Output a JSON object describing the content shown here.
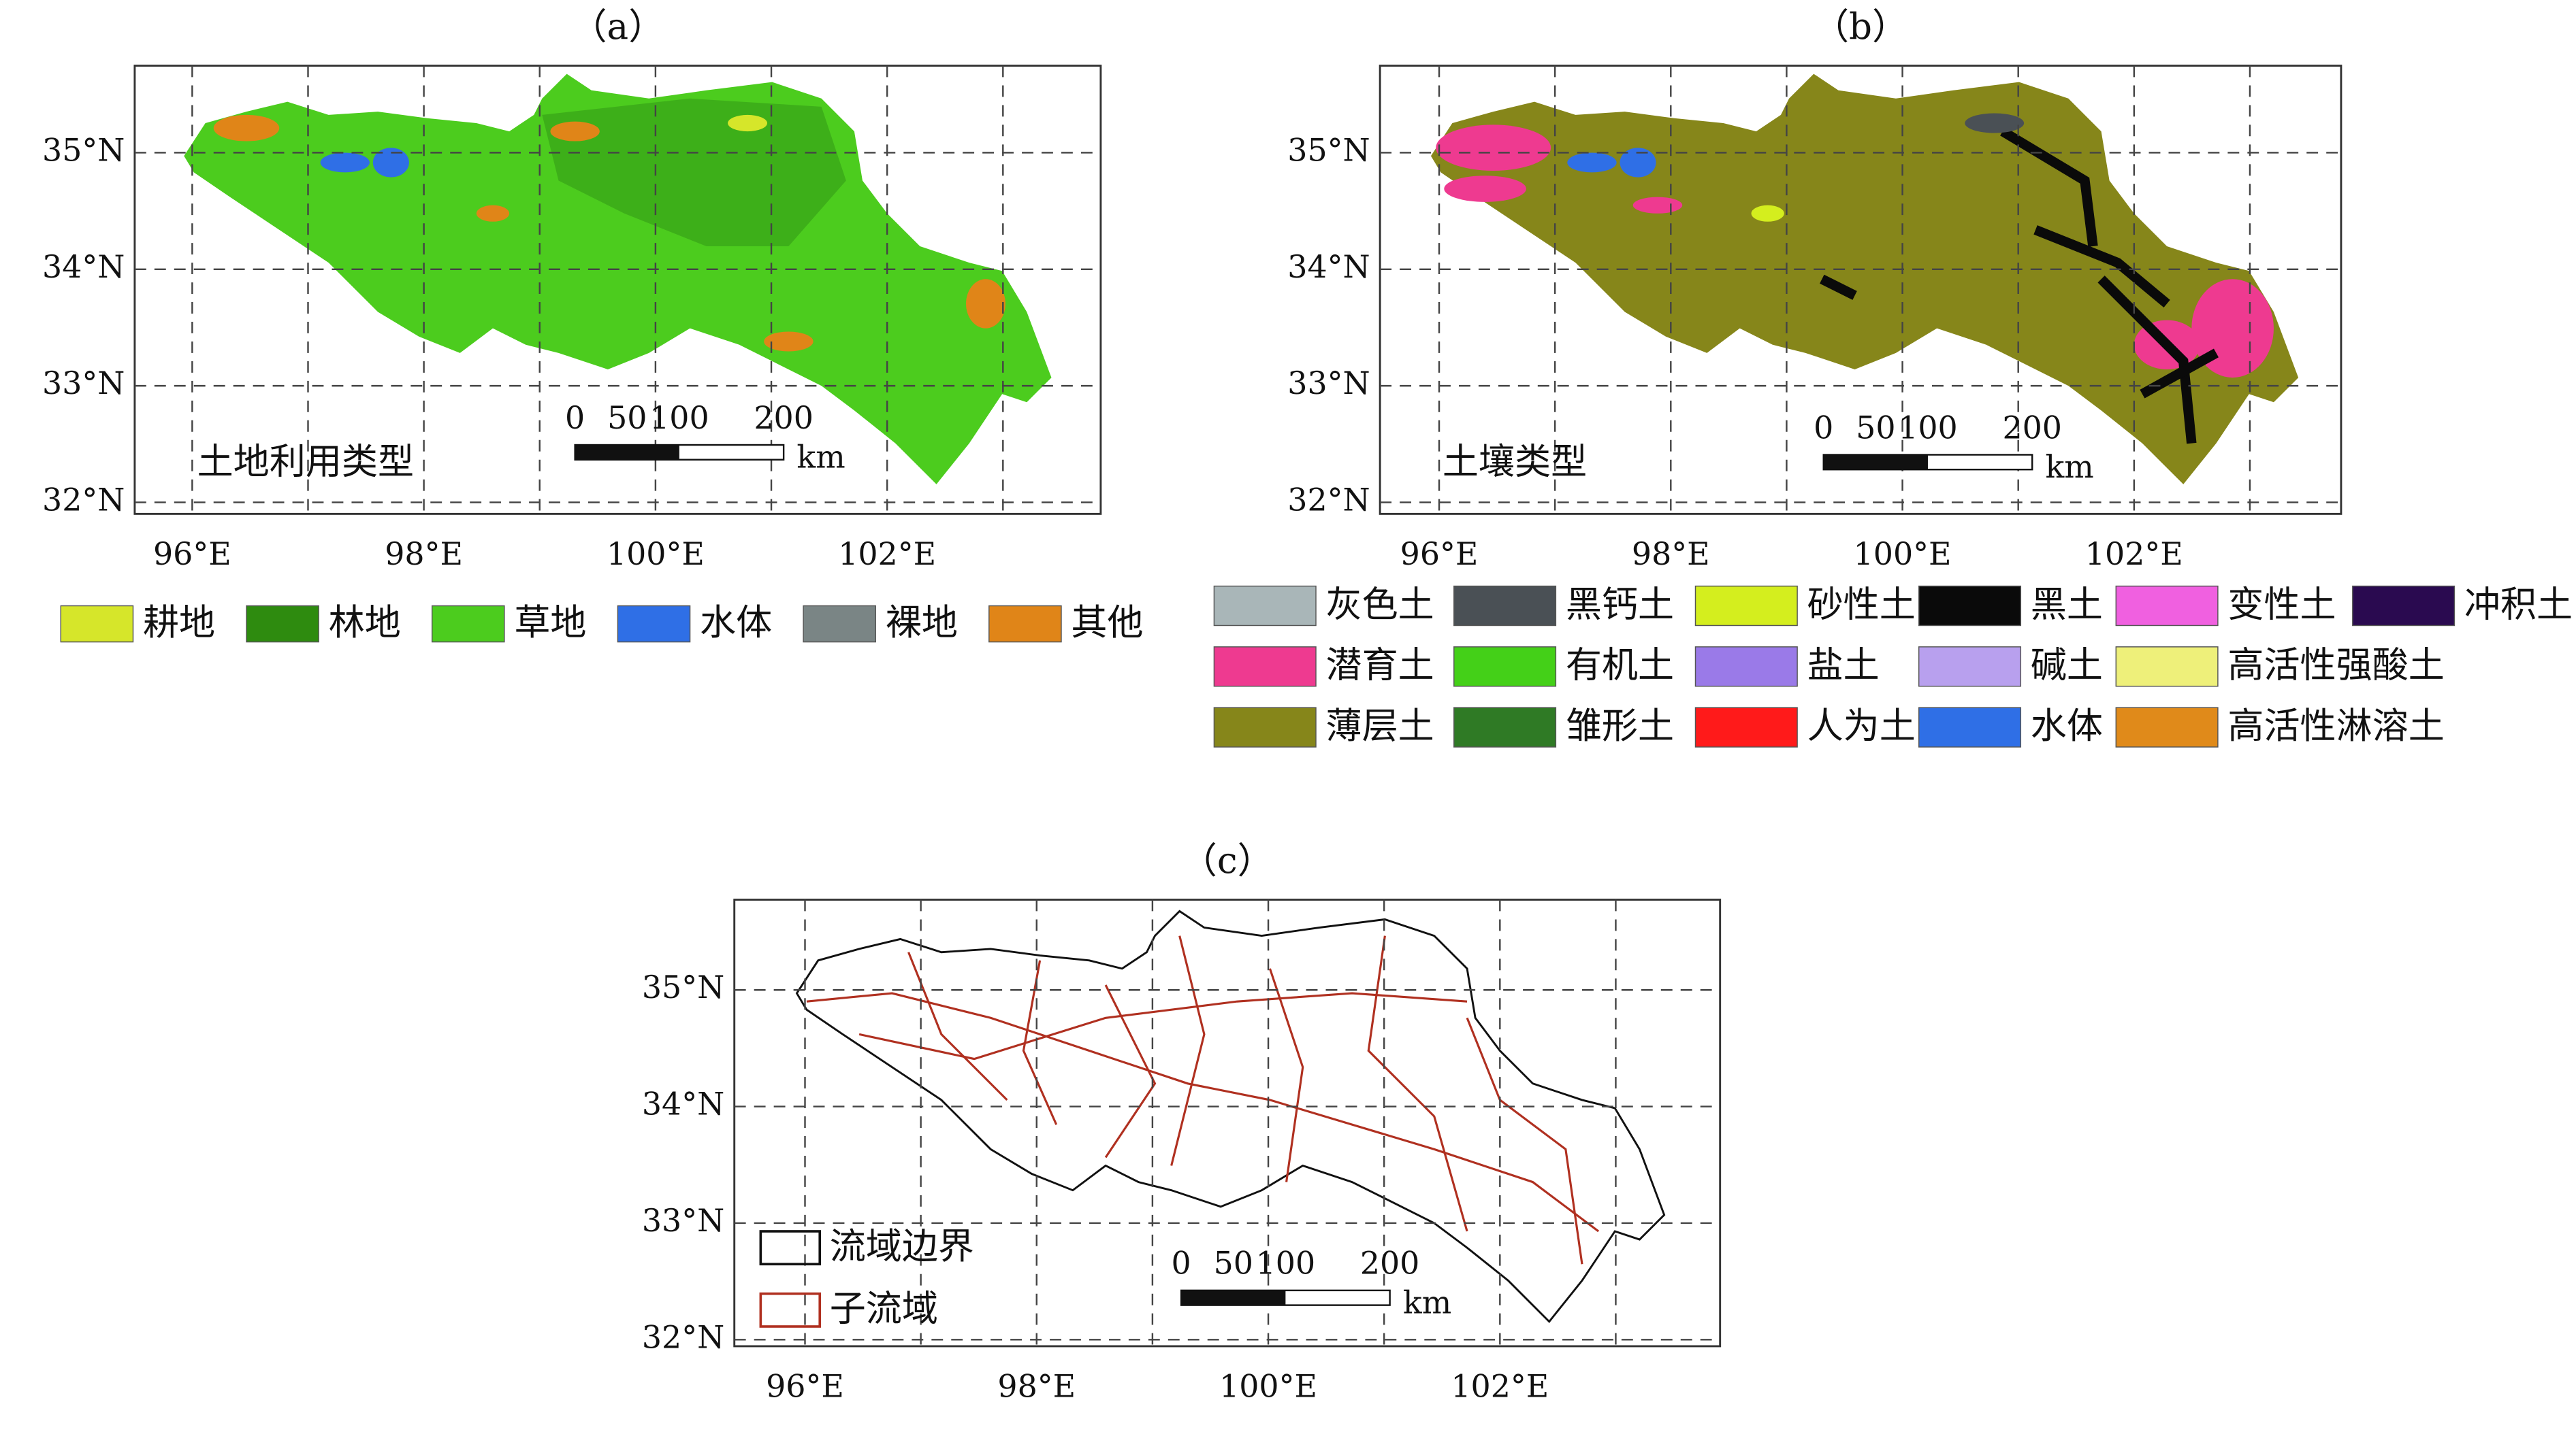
{
  "panels": [
    {
      "label": "（a）",
      "map_label": "土地利用类型",
      "x_ticks": [
        "96°E",
        "98°E",
        "100°E",
        "102°E"
      ],
      "y_ticks": [
        "35°N",
        "34°N",
        "33°N",
        "32°N"
      ],
      "scale_ticks": [
        "0",
        "50",
        "100",
        "200"
      ],
      "scale_unit": "km",
      "legend": [
        {
          "label": "耕地",
          "color": "#d6e62a"
        },
        {
          "label": "林地",
          "color": "#2e8b0f"
        },
        {
          "label": "草地",
          "color": "#4ccc1e"
        },
        {
          "label": "水体",
          "color": "#2f6fe6"
        },
        {
          "label": "裸地",
          "color": "#7a8585"
        },
        {
          "label": "其他",
          "color": "#e08518"
        }
      ]
    },
    {
      "label": "（b）",
      "map_label": "土壤类型",
      "x_ticks": [
        "96°E",
        "98°E",
        "100°E",
        "102°E"
      ],
      "y_ticks": [
        "35°N",
        "34°N",
        "33°N",
        "32°N"
      ],
      "scale_ticks": [
        "0",
        "50",
        "100",
        "200"
      ],
      "scale_unit": "km",
      "legend": [
        {
          "label": "灰色土",
          "color": "#a9b6b8"
        },
        {
          "label": "黑钙土",
          "color": "#4a5055"
        },
        {
          "label": "砂性土",
          "color": "#d4ee1e"
        },
        {
          "label": "黑土",
          "color": "#0a0a0a"
        },
        {
          "label": "变性土",
          "color": "#f060e0"
        },
        {
          "label": "冲积土",
          "color": "#2a0a50"
        },
        {
          "label": "潜育土",
          "color": "#ee3a90"
        },
        {
          "label": "有机土",
          "color": "#44d018"
        },
        {
          "label": "盐土",
          "color": "#9a7ae8"
        },
        {
          "label": "碱土",
          "color": "#b8a0ee"
        },
        {
          "label": "高活性强酸土",
          "color": "#eef07a"
        },
        {
          "label": "薄层土",
          "color": "#86861a"
        },
        {
          "label": "雏形土",
          "color": "#2f7a25"
        },
        {
          "label": "人为土",
          "color": "#ff1a1a"
        },
        {
          "label": "水体",
          "color": "#2f6fe6"
        },
        {
          "label": "高活性淋溶土",
          "color": "#e08a1a"
        }
      ]
    },
    {
      "label": "（c）",
      "x_ticks": [
        "96°E",
        "98°E",
        "100°E",
        "102°E"
      ],
      "y_ticks": [
        "35°N",
        "34°N",
        "33°N",
        "32°N"
      ],
      "scale_ticks": [
        "0",
        "50",
        "100",
        "200"
      ],
      "scale_unit": "km",
      "legend": [
        {
          "label": "流域边界",
          "color": "#111111"
        },
        {
          "label": "子流域",
          "color": "#b03020"
        }
      ]
    }
  ]
}
